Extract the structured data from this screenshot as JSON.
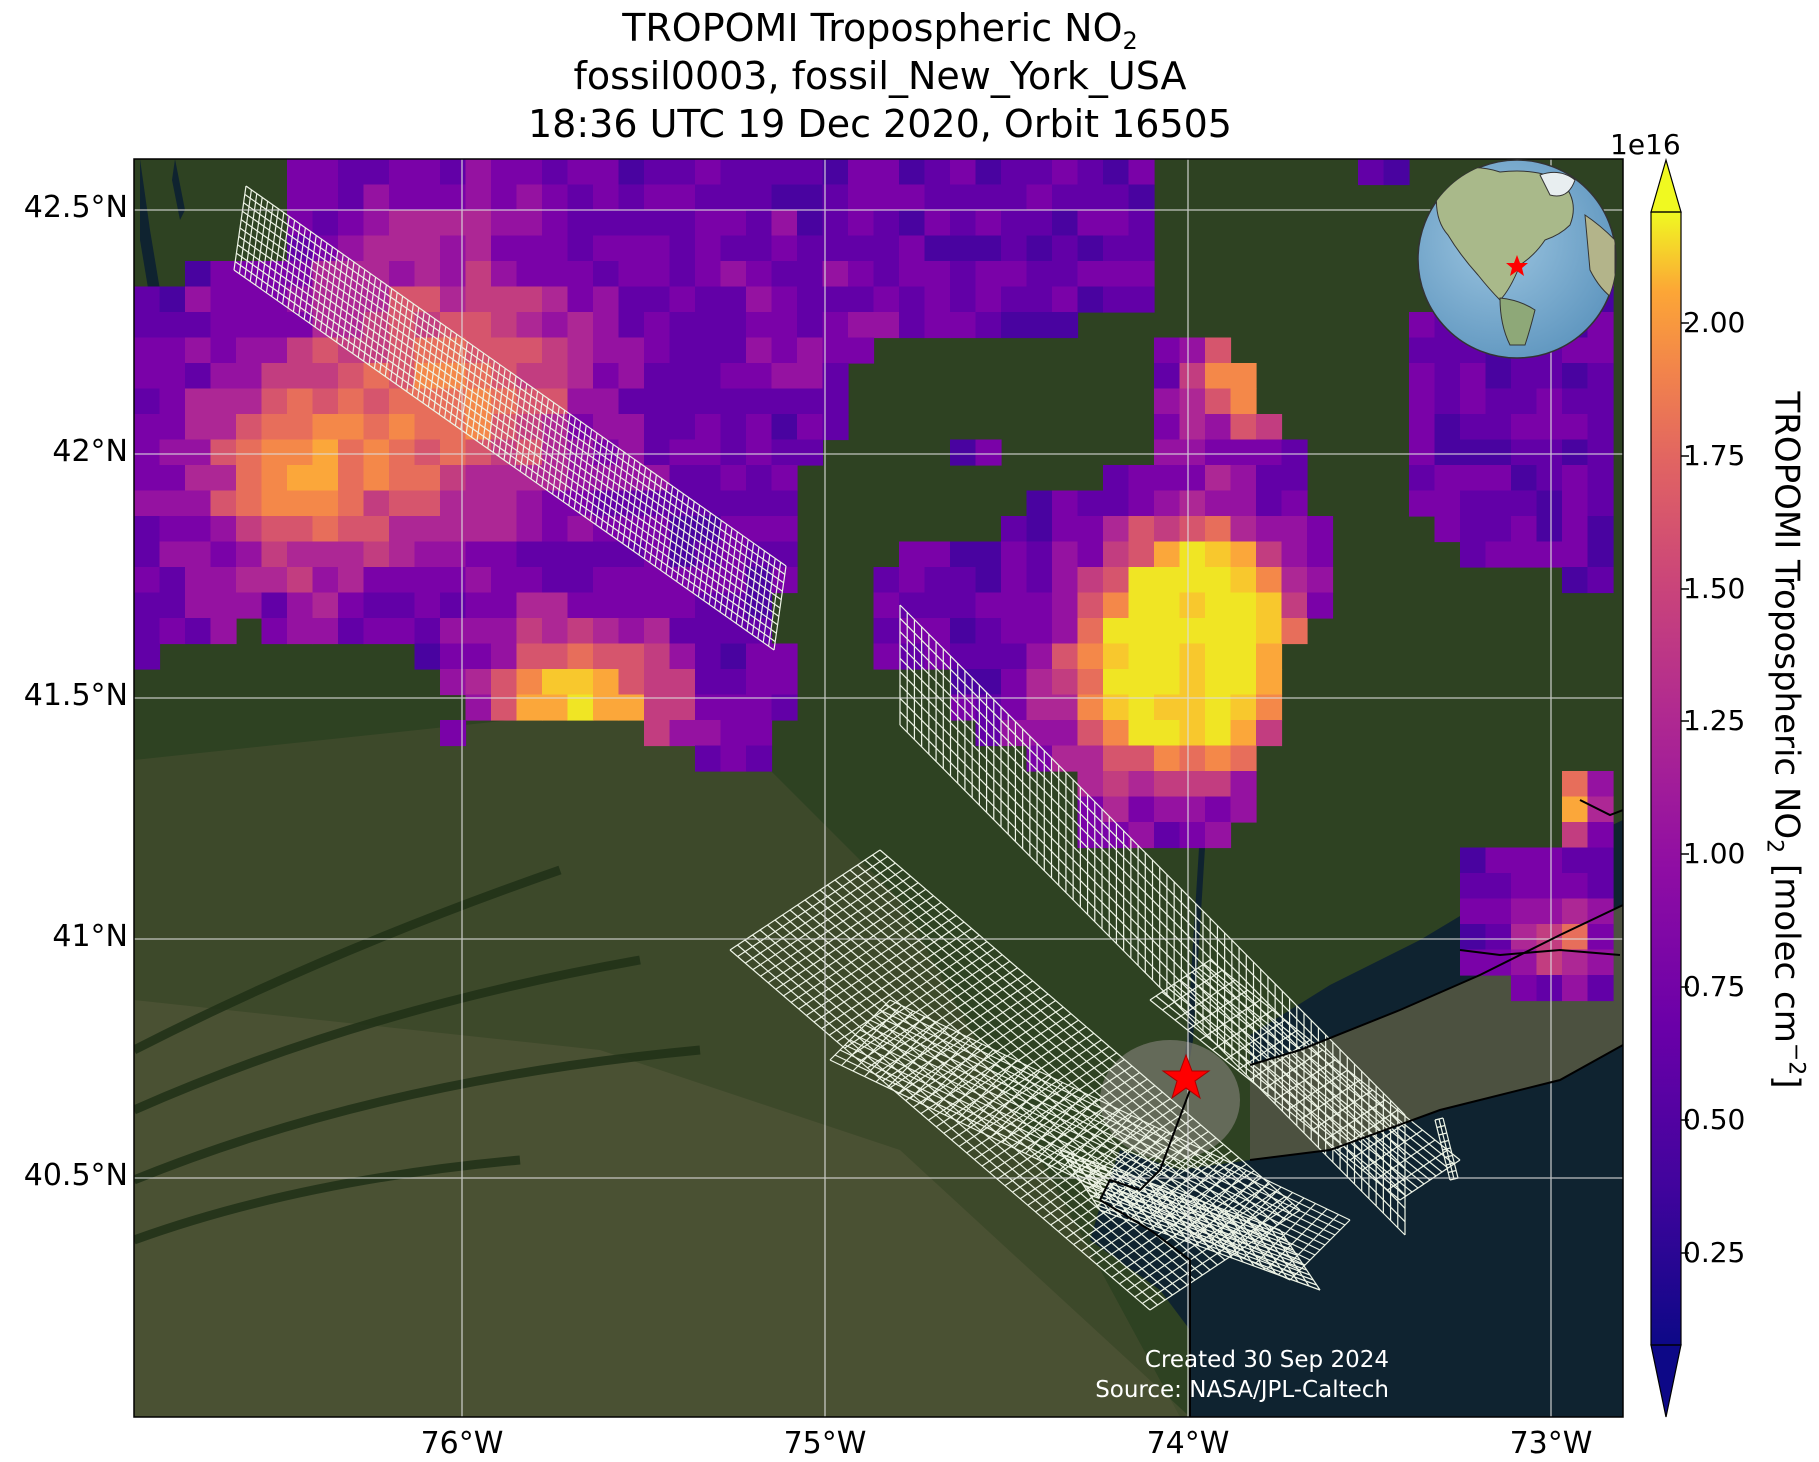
{
  "title": {
    "line1_prefix": "TROPOMI Tropospheric NO",
    "line1_sub": "2",
    "line2": "fossil0003, fossil_New_York_USA",
    "line3": "18:36 UTC 19 Dec 2020, Orbit 16505"
  },
  "axes": {
    "lat_labels": [
      "42.5°N",
      "42°N",
      "41.5°N",
      "41°N",
      "40.5°N"
    ],
    "lon_labels": [
      "76°W",
      "75°W",
      "74°W",
      "73°W"
    ]
  },
  "colorbar": {
    "exponent": "1e16",
    "ticks": [
      "2.00",
      "1.75",
      "1.50",
      "1.25",
      "1.00",
      "0.75",
      "0.50",
      "0.25"
    ],
    "label_prefix": "TROPOMI Tropospheric NO",
    "label_sub": "2",
    "label_mid": " [molec cm",
    "label_sup": "−2",
    "label_end": "]",
    "colormap": "plasma"
  },
  "credits": {
    "created": "Created 30 Sep 2024",
    "source": "Source: NASA/JPL-Caltech"
  },
  "target_marker": {
    "name": "star",
    "color": "#ff0000"
  },
  "colors": {
    "ocean": "#0f2330",
    "land": "#2a3e20",
    "grid": "#dcdcdc",
    "swath": "#e8f0e0"
  }
}
